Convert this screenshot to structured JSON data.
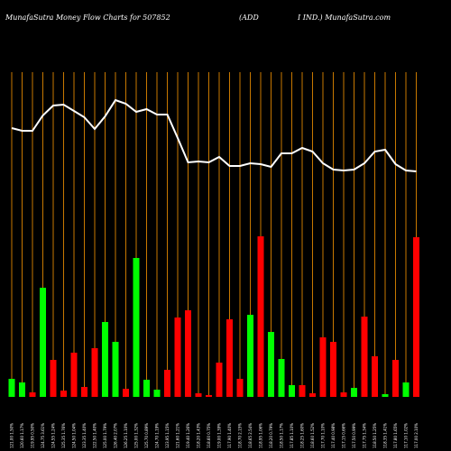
{
  "chart_data": {
    "type": "money-flow",
    "title": "MunafaSutra  Money Flow  Charts for 507852",
    "title_middle": "(ADD",
    "title_right": "I IND.) MunafaSutra.com",
    "categories": [
      "121.00 1.50%",
      "120.60 1.17%",
      "119.95 0.50%",
      "124.75 3.61%",
      "124.55 1.24%",
      "125.35 1.76%",
      "124.50 1.04%",
      "123.35 1.40%",
      "122.50 1.40%",
      "125.00 1.79%",
      "126.40 2.07%",
      "126.25 1.10%",
      "125.00 1.32%",
      "125.70 0.89%",
      "124.70 1.19%",
      "123.95 1.15%",
      "121.60 1.21%",
      "119.40 1.26%",
      "118.20 1.43%",
      "118.60 0.75%",
      "119.00 1.39%",
      "117.90 1.40%",
      "118.70 2.15%",
      "118.65 2.54%",
      "118.95 1.06%",
      "118.20 0.79%",
      "118.50 1.17%",
      "117.85 1.10%",
      "118.25 1.60%",
      "118.60 1.52%",
      "117.70 1.10%",
      "117.40 0.98%",
      "117.15 0.66%",
      "117.50 0.99%",
      "117.75 1.34%",
      "118.50 1.25%",
      "118.35 1.41%",
      "117.80 1.65%",
      "117.10 1.02%",
      "117.00 2.10%"
    ],
    "series": [
      {
        "name": "Money flow",
        "kind": "bar",
        "values": [
          20,
          16,
          5,
          121,
          41,
          7,
          49,
          11,
          54,
          83,
          61,
          9,
          154,
          19,
          8,
          30,
          88,
          96,
          4,
          2,
          38,
          86,
          20,
          91,
          178,
          72,
          42,
          13,
          13,
          4,
          66,
          61,
          5,
          10,
          89,
          45,
          3,
          41,
          16,
          177
        ],
        "colors": [
          "#00ff00",
          "#00ff00",
          "#ff0000",
          "#00ff00",
          "#ff0000",
          "#ff0000",
          "#ff0000",
          "#ff0000",
          "#ff0000",
          "#00ff00",
          "#00ff00",
          "#ff0000",
          "#00ff00",
          "#00ff00",
          "#00ff00",
          "#ff0000",
          "#ff0000",
          "#ff0000",
          "#ff0000",
          "#ff0000",
          "#ff0000",
          "#ff0000",
          "#ff0000",
          "#00ff00",
          "#ff0000",
          "#00ff00",
          "#00ff00",
          "#00ff00",
          "#ff0000",
          "#ff0000",
          "#ff0000",
          "#ff0000",
          "#ff0000",
          "#00ff00",
          "#ff0000",
          "#ff0000",
          "#00ff00",
          "#ff0000",
          "#00ff00",
          "#ff0000"
        ]
      },
      {
        "name": "Price",
        "kind": "line",
        "color": "#ffffff",
        "values": [
          298,
          295,
          295,
          312,
          323,
          324,
          317,
          310,
          297,
          311,
          329,
          325,
          316,
          319,
          313,
          313,
          287,
          260,
          261,
          260,
          266,
          256,
          256,
          259,
          258,
          255,
          270,
          270,
          276,
          272,
          259,
          252,
          251,
          252,
          259,
          272,
          274,
          258,
          251,
          250
        ]
      }
    ],
    "ylim": [
      0,
      360
    ],
    "grid_color": "#c87800",
    "background": "#000000"
  }
}
